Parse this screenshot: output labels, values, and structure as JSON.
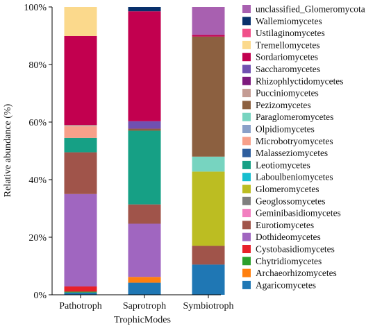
{
  "chart_data": {
    "type": "bar",
    "stacked": true,
    "title": "",
    "xlabel": "TrophicModes",
    "ylabel": "Relative abundance (%)",
    "ylim": [
      0,
      100
    ],
    "yticks": [
      0,
      20,
      40,
      60,
      80,
      100
    ],
    "ytick_labels": [
      "0%",
      "20%",
      "40%",
      "60%",
      "80%",
      "100%"
    ],
    "grid": false,
    "legend_position": "right",
    "categories": [
      "Pathotroph",
      "Saprotroph",
      "Symbiotroph"
    ],
    "series": [
      {
        "name": "Agaricomycetes",
        "color": "#1f77b4",
        "values": [
          0.8,
          4.2,
          10.5
        ]
      },
      {
        "name": "Archaeorhizomycetes",
        "color": "#ff7f0e",
        "values": [
          0,
          2.0,
          0
        ]
      },
      {
        "name": "Chytridiomycetes",
        "color": "#2ca02c",
        "values": [
          0.3,
          0,
          0
        ]
      },
      {
        "name": "Cystobasidiomycetes",
        "color": "#e8202a",
        "values": [
          1.8,
          0,
          0
        ]
      },
      {
        "name": "Dothideomycetes",
        "color": "#a066c0",
        "values": [
          32.1,
          18.5,
          0
        ]
      },
      {
        "name": "Eurotiomycetes",
        "color": "#a0544a",
        "values": [
          14.5,
          6.7,
          6.5
        ]
      },
      {
        "name": "Geminibasidiomycetes",
        "color": "#f27fc0",
        "values": [
          0,
          0,
          0
        ]
      },
      {
        "name": "Geoglossomycetes",
        "color": "#7f7f7f",
        "values": [
          0,
          0,
          0
        ]
      },
      {
        "name": "Glomeromycetes",
        "color": "#bcbd22",
        "values": [
          0,
          0,
          25.8
        ]
      },
      {
        "name": "Laboulbeniomycetes",
        "color": "#17becf",
        "values": [
          0,
          0,
          0
        ]
      },
      {
        "name": "Leotiomycetes",
        "color": "#16a085",
        "values": [
          5.0,
          25.6,
          0
        ]
      },
      {
        "name": "Malasseziomycetes",
        "color": "#2f5f9e",
        "values": [
          0,
          0,
          0
        ]
      },
      {
        "name": "Microbotryomycetes",
        "color": "#f7a08a",
        "values": [
          4.0,
          0,
          0
        ]
      },
      {
        "name": "Olpidiomycetes",
        "color": "#8aa0c8",
        "values": [
          0,
          0,
          0
        ]
      },
      {
        "name": "Paraglomeromycetes",
        "color": "#77d4c0",
        "values": [
          0,
          0,
          5.2
        ]
      },
      {
        "name": "Pezizomycetes",
        "color": "#8c6040",
        "values": [
          0,
          0.7,
          41.7
        ]
      },
      {
        "name": "Pucciniomycetes",
        "color": "#c49c94",
        "values": [
          0.5,
          0,
          0
        ]
      },
      {
        "name": "Rhizophlyctidomycetes",
        "color": "#7d1a7d",
        "values": [
          0,
          0.1,
          0
        ]
      },
      {
        "name": "Saccharomycetes",
        "color": "#7050b0",
        "values": [
          0,
          2.5,
          0
        ]
      },
      {
        "name": "Sordariomycetes",
        "color": "#c2004f",
        "values": [
          30.9,
          38.2,
          0.6
        ]
      },
      {
        "name": "Tremellomycetes",
        "color": "#fbd98c",
        "values": [
          10.1,
          0,
          0
        ]
      },
      {
        "name": "Ustilaginomycetes",
        "color": "#f0508a",
        "values": [
          0,
          0,
          0
        ]
      },
      {
        "name": "Wallemiomycetes",
        "color": "#08306b",
        "values": [
          0,
          1.5,
          0
        ]
      },
      {
        "name": "unclassified_Glomeromycota",
        "color": "#a860b0",
        "values": [
          0,
          0,
          9.7
        ]
      }
    ]
  }
}
